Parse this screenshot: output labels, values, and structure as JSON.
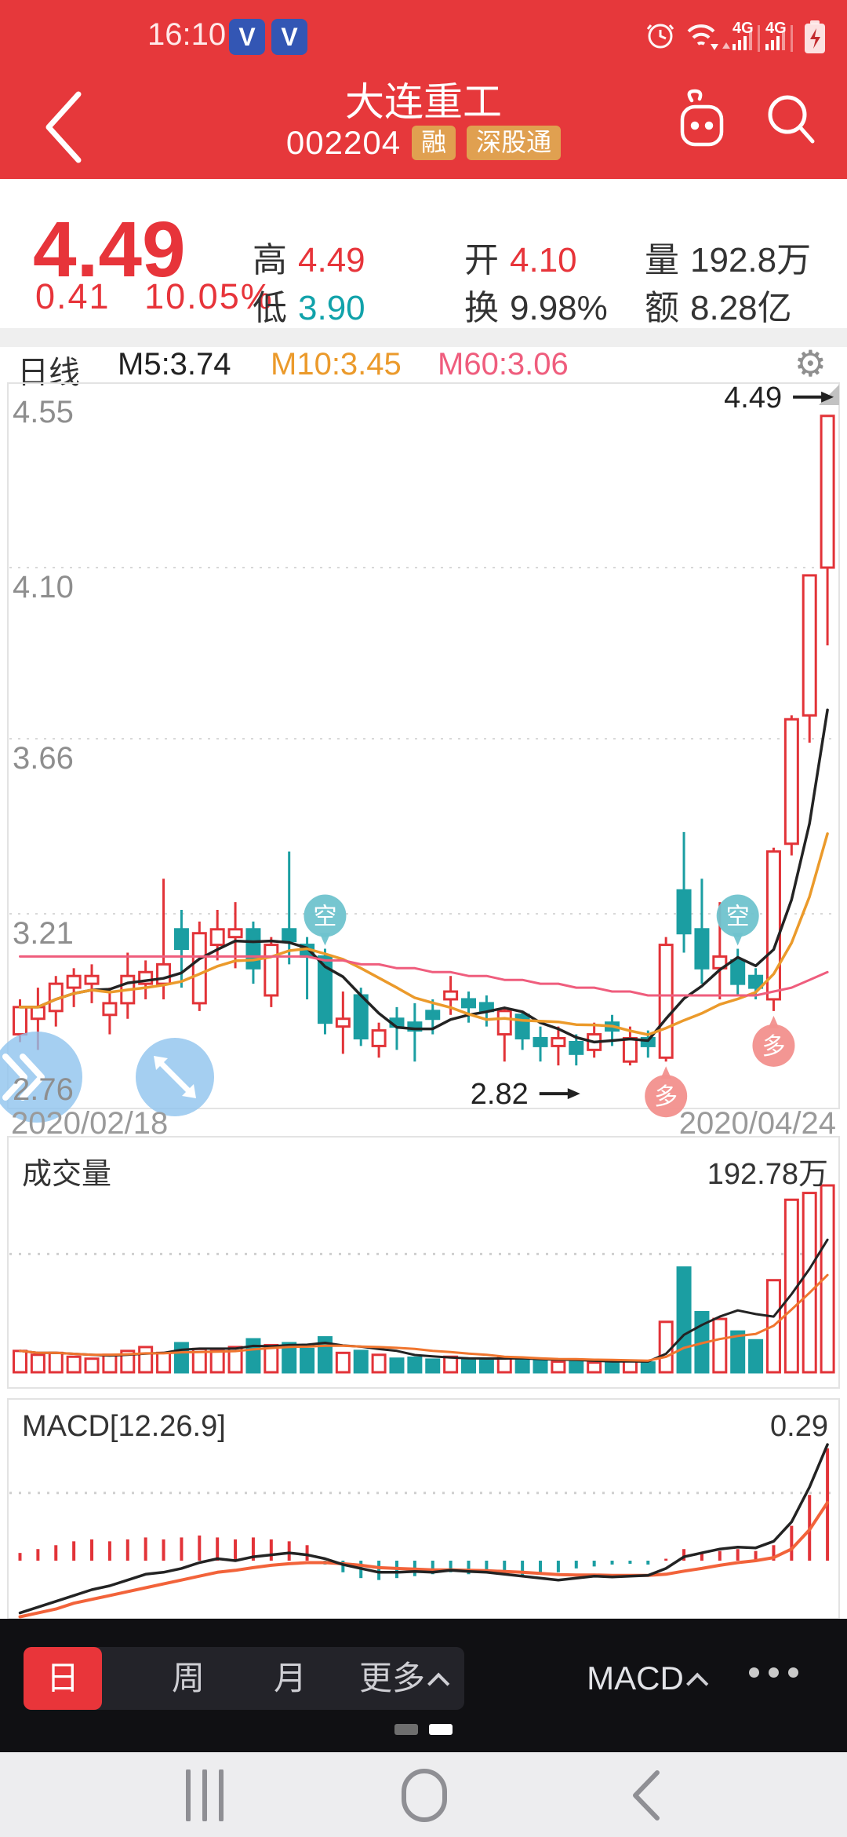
{
  "colors": {
    "header_bg": "#e6383b",
    "up_red": "#e23338",
    "down_teal": "#1b9ea2",
    "ma5": "#232323",
    "ma10": "#eb9a2b",
    "ma60": "#ef5d7d",
    "vol_ma5": "#232323",
    "vol_ma10": "#f0752e",
    "dif": "#232323",
    "dea": "#f2633a",
    "price_red": "#e7343a",
    "low_teal": "#11a2aa",
    "badge_bg": "#e0a050",
    "active_tab_bg": "#e9353a",
    "bubble_short": "#6fc3cd",
    "bubble_long": "#f2908d",
    "helper_blue": "#8fc3ee"
  },
  "status_bar": {
    "time": "16:10",
    "badge1": "V",
    "badge2": "V"
  },
  "header": {
    "title": "大连重工",
    "code": "002204",
    "badge_margin": "融",
    "badge_connect": "深股通"
  },
  "quote": {
    "price": "4.49",
    "change": "0.41",
    "change_pct": "10.05%",
    "high_label": "高",
    "high": "4.49",
    "low_label": "低",
    "low": "3.90",
    "open_label": "开",
    "open": "4.10",
    "turnover_label": "换",
    "turnover": "9.98%",
    "volume_label": "量",
    "volume": "192.8万",
    "amount_label": "额",
    "amount": "8.28亿"
  },
  "chart_header": {
    "period": "日线",
    "ma5": "M5:3.74",
    "ma10": "M10:3.45",
    "ma60": "M60:3.06",
    "gear_glyph": "⚙"
  },
  "chart_data": {
    "type": "candlestick",
    "title": "日线",
    "x_labels": [
      "2020/02/18",
      "2020/04/24"
    ],
    "y_ticks": [
      "4.55",
      "4.10",
      "3.66",
      "3.21",
      "2.76"
    ],
    "y_tick_values": [
      4.55,
      4.1,
      3.66,
      3.21,
      2.76
    ],
    "ylim": [
      2.7,
      4.58
    ],
    "legend": [
      "M5:3.74",
      "M10:3.45",
      "M60:3.06"
    ],
    "candles": [
      [
        2.9,
        2.97,
        2.88,
        2.99
      ],
      [
        2.94,
        2.97,
        2.86,
        3.02
      ],
      [
        2.96,
        3.03,
        2.92,
        3.05
      ],
      [
        3.02,
        3.05,
        2.97,
        3.07
      ],
      [
        3.03,
        3.05,
        2.98,
        3.08
      ],
      [
        2.95,
        2.98,
        2.9,
        3.02
      ],
      [
        2.98,
        3.05,
        2.94,
        3.11
      ],
      [
        3.03,
        3.06,
        2.99,
        3.09
      ],
      [
        3.03,
        3.08,
        2.99,
        3.3
      ],
      [
        3.17,
        3.12,
        3.02,
        3.22
      ],
      [
        2.98,
        3.16,
        2.96,
        3.19
      ],
      [
        3.13,
        3.17,
        3.09,
        3.22
      ],
      [
        3.15,
        3.17,
        3.07,
        3.24
      ],
      [
        3.17,
        3.07,
        3.03,
        3.19
      ],
      [
        3.0,
        3.13,
        2.97,
        3.15
      ],
      [
        3.17,
        3.14,
        3.08,
        3.37
      ],
      [
        3.13,
        3.1,
        2.99,
        3.15
      ],
      [
        3.1,
        2.93,
        2.9,
        3.12
      ],
      [
        2.92,
        2.94,
        2.85,
        3.01
      ],
      [
        3.0,
        2.89,
        2.87,
        3.02
      ],
      [
        2.87,
        2.91,
        2.84,
        2.93
      ],
      [
        2.94,
        2.92,
        2.86,
        2.97
      ],
      [
        2.93,
        2.91,
        2.83,
        2.98
      ],
      [
        2.96,
        2.94,
        2.9,
        2.99
      ],
      [
        2.99,
        3.01,
        2.95,
        3.05
      ],
      [
        2.99,
        2.97,
        2.93,
        3.01
      ],
      [
        2.98,
        2.96,
        2.92,
        3.0
      ],
      [
        2.9,
        2.96,
        2.83,
        2.97
      ],
      [
        2.95,
        2.89,
        2.86,
        2.96
      ],
      [
        2.89,
        2.87,
        2.83,
        2.92
      ],
      [
        2.87,
        2.89,
        2.82,
        2.92
      ],
      [
        2.88,
        2.85,
        2.82,
        2.9
      ],
      [
        2.86,
        2.9,
        2.84,
        2.93
      ],
      [
        2.93,
        2.91,
        2.87,
        2.95
      ],
      [
        2.83,
        2.89,
        2.82,
        2.92
      ],
      [
        2.89,
        2.87,
        2.84,
        2.91
      ],
      [
        2.84,
        3.13,
        2.83,
        3.15
      ],
      [
        3.27,
        3.16,
        3.11,
        3.42
      ],
      [
        3.17,
        3.07,
        3.03,
        3.3
      ],
      [
        3.07,
        3.1,
        2.99,
        3.24
      ],
      [
        3.09,
        3.03,
        3.0,
        3.12
      ],
      [
        3.05,
        3.02,
        2.99,
        3.07
      ],
      [
        2.99,
        3.37,
        2.96,
        3.38
      ],
      [
        3.39,
        3.71,
        3.36,
        3.72
      ],
      [
        3.72,
        4.08,
        3.65,
        4.08
      ],
      [
        4.1,
        4.49,
        3.9,
        4.49
      ]
    ],
    "ma60": [
      3.1,
      3.1,
      3.1,
      3.1,
      3.1,
      3.1,
      3.1,
      3.1,
      3.1,
      3.1,
      3.1,
      3.1,
      3.1,
      3.1,
      3.1,
      3.1,
      3.1,
      3.09,
      3.09,
      3.08,
      3.08,
      3.07,
      3.07,
      3.06,
      3.06,
      3.05,
      3.05,
      3.04,
      3.04,
      3.03,
      3.03,
      3.02,
      3.02,
      3.01,
      3.01,
      3.0,
      3.0,
      3.0,
      3.0,
      3.0,
      3.0,
      3.0,
      3.01,
      3.02,
      3.04,
      3.06
    ],
    "annotations": [
      {
        "label": "4.49",
        "index": 46,
        "side": "high",
        "value": 4.49
      },
      {
        "label": "2.82",
        "index": 32,
        "side": "low",
        "value": 2.82
      }
    ],
    "markers": [
      {
        "label": "空",
        "index": 18,
        "side": "above"
      },
      {
        "label": "空",
        "index": 41,
        "side": "above"
      },
      {
        "label": "多",
        "index": 37,
        "side": "below"
      },
      {
        "label": "多",
        "index": 43,
        "side": "below"
      }
    ],
    "volume": {
      "title": "成交量",
      "latest": "192.78万",
      "unit": "万",
      "ref_value": 122,
      "values": [
        22,
        18,
        20,
        16,
        14,
        18,
        22,
        26,
        20,
        30,
        24,
        22,
        26,
        34,
        28,
        30,
        24,
        36,
        20,
        22,
        18,
        14,
        15,
        13,
        16,
        14,
        13,
        15,
        14,
        12,
        11,
        12,
        10,
        11,
        12,
        10,
        52,
        108,
        62,
        55,
        42,
        33,
        95,
        178,
        185,
        192.78
      ]
    },
    "macd": {
      "title": "MACD[12.26.9]",
      "latest": "0.29",
      "ref_value": 0.175,
      "hist": [
        0.02,
        0.03,
        0.04,
        0.05,
        0.055,
        0.05,
        0.055,
        0.06,
        0.055,
        0.06,
        0.065,
        0.06,
        0.055,
        0.06,
        0.055,
        0.05,
        0.04,
        -0.01,
        -0.03,
        -0.045,
        -0.05,
        -0.045,
        -0.04,
        -0.035,
        -0.03,
        -0.035,
        -0.03,
        -0.035,
        -0.04,
        -0.035,
        -0.03,
        -0.02,
        -0.015,
        -0.01,
        -0.008,
        -0.01,
        0.005,
        0.03,
        0.02,
        0.025,
        0.03,
        0.025,
        0.04,
        0.09,
        0.17,
        0.29
      ],
      "dif": [
        -0.135,
        -0.12,
        -0.105,
        -0.09,
        -0.075,
        -0.065,
        -0.05,
        -0.035,
        -0.03,
        -0.02,
        -0.005,
        0.005,
        0.0,
        0.01,
        0.015,
        0.02,
        0.015,
        0.005,
        -0.01,
        -0.02,
        -0.03,
        -0.03,
        -0.028,
        -0.03,
        -0.025,
        -0.028,
        -0.03,
        -0.035,
        -0.04,
        -0.045,
        -0.05,
        -0.045,
        -0.04,
        -0.042,
        -0.04,
        -0.038,
        -0.02,
        0.01,
        0.02,
        0.03,
        0.035,
        0.033,
        0.05,
        0.1,
        0.19,
        0.3
      ],
      "dea": [
        -0.145,
        -0.135,
        -0.125,
        -0.11,
        -0.1,
        -0.09,
        -0.08,
        -0.07,
        -0.06,
        -0.05,
        -0.04,
        -0.03,
        -0.025,
        -0.018,
        -0.012,
        -0.008,
        -0.005,
        -0.005,
        -0.008,
        -0.012,
        -0.018,
        -0.02,
        -0.022,
        -0.024,
        -0.024,
        -0.025,
        -0.026,
        -0.028,
        -0.03,
        -0.033,
        -0.036,
        -0.037,
        -0.037,
        -0.038,
        -0.038,
        -0.038,
        -0.035,
        -0.027,
        -0.02,
        -0.012,
        -0.005,
        0.0,
        0.008,
        0.03,
        0.08,
        0.15
      ]
    }
  },
  "toolbar": {
    "period_day": "日",
    "period_week": "周",
    "period_month": "月",
    "more_label": "更多",
    "indicator_label": "MACD"
  }
}
